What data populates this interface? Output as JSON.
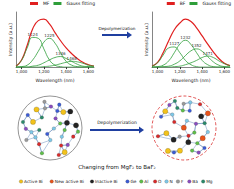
{
  "chart_data": [
    {
      "type": "line",
      "xlabel": "Wavelength (nm)",
      "ylabel": "Intensity (a.u.)",
      "x": [
        950,
        1000,
        1050,
        1100,
        1150,
        1200,
        1250,
        1300,
        1350,
        1400,
        1450,
        1500,
        1550,
        1600,
        1650
      ],
      "xlim": [
        950,
        1650
      ],
      "xticks": [
        1000,
        1200,
        1400,
        1600
      ],
      "ylim": [
        0,
        1.15
      ],
      "tick_labels": "x",
      "grid": false,
      "legend": "top-right",
      "series": [
        {
          "name": "MF",
          "color": "#e02020",
          "values": [
            0.02,
            0.15,
            0.45,
            0.8,
            0.97,
            1.0,
            0.9,
            0.72,
            0.55,
            0.4,
            0.28,
            0.18,
            0.1,
            0.05,
            0.02
          ]
        },
        {
          "name": "Gauss fitting",
          "color": "#2e9e3a",
          "components": [
            {
              "label": "1124",
              "values": [
                0.02,
                0.14,
                0.4,
                0.62,
                0.6,
                0.38,
                0.15,
                0.04,
                0.01,
                0,
                0,
                0,
                0,
                0,
                0
              ]
            },
            {
              "label": "1225",
              "values": [
                0,
                0.01,
                0.04,
                0.15,
                0.33,
                0.52,
                0.6,
                0.5,
                0.3,
                0.12,
                0.04,
                0.01,
                0,
                0,
                0
              ]
            },
            {
              "label": "1346",
              "values": [
                0,
                0,
                0,
                0.02,
                0.04,
                0.09,
                0.15,
                0.2,
                0.22,
                0.18,
                0.12,
                0.06,
                0.02,
                0.01,
                0
              ]
            },
            {
              "label": "1468",
              "values": [
                0,
                0,
                0,
                0,
                0,
                0.01,
                0.02,
                0.04,
                0.07,
                0.1,
                0.12,
                0.11,
                0.08,
                0.04,
                0.02
              ]
            }
          ]
        }
      ]
    },
    {
      "type": "line",
      "xlabel": "Wavelength (nm)",
      "ylabel": "Intensity (a.u.)",
      "x": [
        950,
        1000,
        1050,
        1100,
        1150,
        1200,
        1250,
        1300,
        1350,
        1400,
        1450,
        1500,
        1550,
        1600,
        1650
      ],
      "xlim": [
        950,
        1650
      ],
      "xticks": [
        1000,
        1200,
        1400,
        1600
      ],
      "ylim": [
        0,
        1.15
      ],
      "tick_labels": "x",
      "grid": false,
      "legend": "top-right",
      "series": [
        {
          "name": "BF",
          "color": "#e02020",
          "values": [
            0.02,
            0.1,
            0.3,
            0.55,
            0.78,
            0.92,
            1.0,
            0.95,
            0.82,
            0.65,
            0.48,
            0.32,
            0.18,
            0.08,
            0.03
          ]
        },
        {
          "name": "Gauss fitting",
          "color": "#2e9e3a",
          "components": [
            {
              "label": "1127",
              "values": [
                0.02,
                0.09,
                0.25,
                0.4,
                0.42,
                0.3,
                0.14,
                0.05,
                0.01,
                0,
                0,
                0,
                0,
                0,
                0
              ]
            },
            {
              "label": "1232",
              "values": [
                0,
                0.01,
                0.04,
                0.13,
                0.3,
                0.48,
                0.56,
                0.47,
                0.3,
                0.14,
                0.05,
                0.01,
                0,
                0,
                0
              ]
            },
            {
              "label": "1352",
              "values": [
                0,
                0,
                0.01,
                0.02,
                0.06,
                0.13,
                0.24,
                0.34,
                0.38,
                0.33,
                0.22,
                0.11,
                0.04,
                0.01,
                0
              ]
            },
            {
              "label": "1471",
              "values": [
                0,
                0,
                0,
                0,
                0.01,
                0.02,
                0.05,
                0.09,
                0.14,
                0.2,
                0.23,
                0.2,
                0.13,
                0.07,
                0.03
              ]
            }
          ]
        }
      ]
    }
  ],
  "diagram": {
    "top_arrow": "Depolymerization",
    "bottom_arrow": "Depolymerization",
    "caption": "Changing from MgF₂ to BaF₂",
    "legend": [
      {
        "label": "Active Bi",
        "color": "#f2c21b"
      },
      {
        "label": "New active Bi",
        "color": "#e8541c"
      },
      {
        "label": "Inactive Bi",
        "color": "#222222"
      },
      {
        "label": "Ge",
        "color": "#3b5bd6"
      },
      {
        "label": "Al",
        "color": "#5fbf4a"
      },
      {
        "label": "O",
        "color": "#d92b2b"
      },
      {
        "label": "N",
        "color": "#7ec8e8"
      },
      {
        "label": "F",
        "color": "#9a9a9a"
      },
      {
        "label": "Ba",
        "color": "#8a4bbf"
      },
      {
        "label": "Mg",
        "color": "#2a8a6a"
      }
    ]
  }
}
